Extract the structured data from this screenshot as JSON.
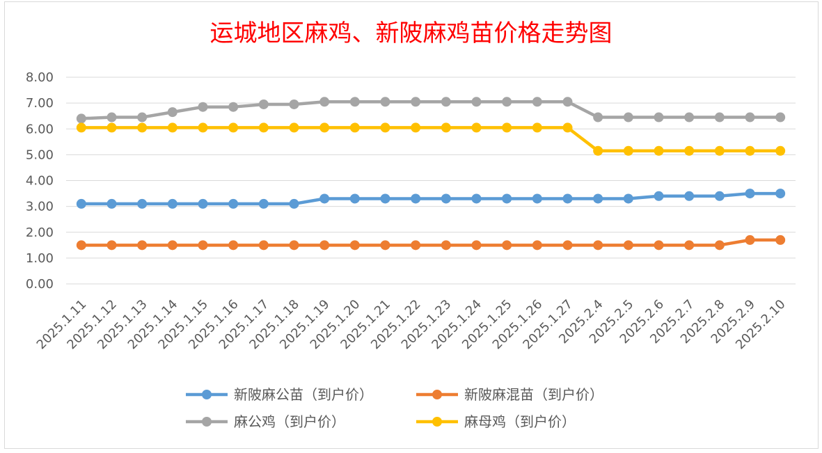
{
  "chart_data": {
    "type": "line",
    "title": "运城地区麻鸡、新陂麻鸡苗价格走势图",
    "xlabel": "",
    "ylabel": "",
    "ylim": [
      0,
      8
    ],
    "yticks": [
      "0.00",
      "1.00",
      "2.00",
      "3.00",
      "4.00",
      "5.00",
      "6.00",
      "7.00",
      "8.00"
    ],
    "grid": true,
    "legend_position": "bottom",
    "categories": [
      "2025.1.11",
      "2025.1.12",
      "2025.1.13",
      "2025.1.14",
      "2025.1.15",
      "2025.1.16",
      "2025.1.17",
      "2025.1.18",
      "2025.1.19",
      "2025.1.20",
      "2025.1.21",
      "2025.1.22",
      "2025.1.23",
      "2025.1.24",
      "2025.1.25",
      "2025.1.26",
      "2025.1.27",
      "2025.2.4",
      "2025.2.5",
      "2025.2.6",
      "2025.2.7",
      "2025.2.8",
      "2025.2.9",
      "2025.2.10"
    ],
    "series": [
      {
        "name": "新陂麻公苗（到户价）",
        "color": "#5b9bd5",
        "values": [
          3.1,
          3.1,
          3.1,
          3.1,
          3.1,
          3.1,
          3.1,
          3.1,
          3.3,
          3.3,
          3.3,
          3.3,
          3.3,
          3.3,
          3.3,
          3.3,
          3.3,
          3.3,
          3.3,
          3.4,
          3.4,
          3.4,
          3.5,
          3.5
        ]
      },
      {
        "name": "新陂麻混苗（到户价）",
        "color": "#ed7d31",
        "values": [
          1.5,
          1.5,
          1.5,
          1.5,
          1.5,
          1.5,
          1.5,
          1.5,
          1.5,
          1.5,
          1.5,
          1.5,
          1.5,
          1.5,
          1.5,
          1.5,
          1.5,
          1.5,
          1.5,
          1.5,
          1.5,
          1.5,
          1.7,
          1.7
        ]
      },
      {
        "name": "麻公鸡（到户价）",
        "color": "#a5a5a5",
        "values": [
          6.4,
          6.45,
          6.45,
          6.65,
          6.85,
          6.85,
          6.95,
          6.95,
          7.05,
          7.05,
          7.05,
          7.05,
          7.05,
          7.05,
          7.05,
          7.05,
          7.05,
          6.45,
          6.45,
          6.45,
          6.45,
          6.45,
          6.45,
          6.45
        ]
      },
      {
        "name": "麻母鸡（到户价）",
        "color": "#ffc000",
        "values": [
          6.05,
          6.05,
          6.05,
          6.05,
          6.05,
          6.05,
          6.05,
          6.05,
          6.05,
          6.05,
          6.05,
          6.05,
          6.05,
          6.05,
          6.05,
          6.05,
          6.05,
          5.15,
          5.15,
          5.15,
          5.15,
          5.15,
          5.15,
          5.15
        ]
      }
    ]
  }
}
